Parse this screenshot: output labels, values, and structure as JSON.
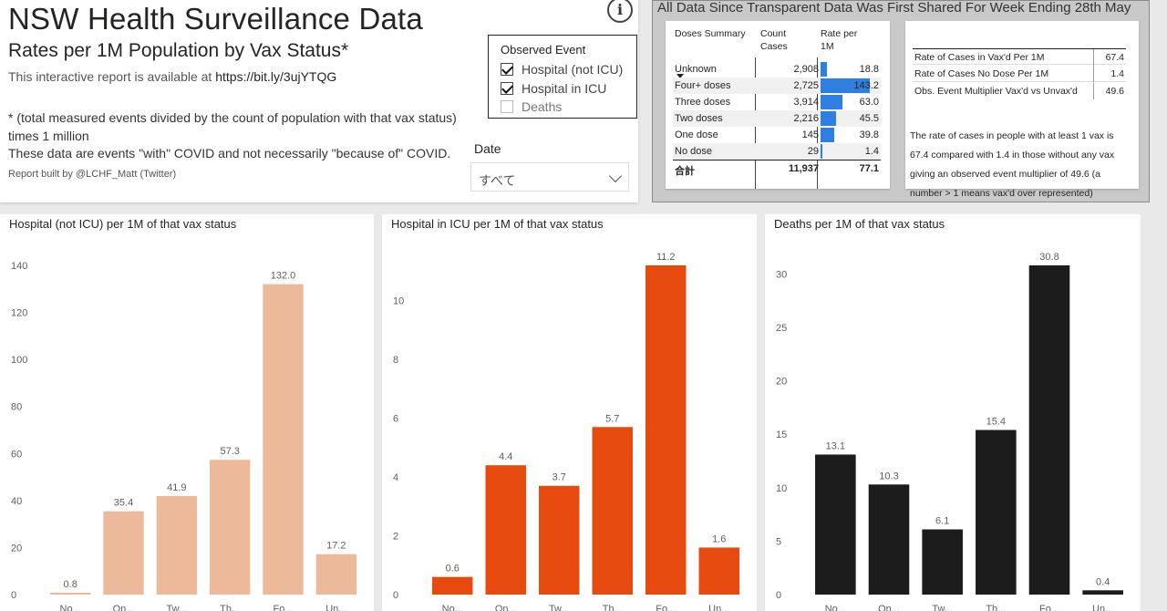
{
  "header": {
    "title": "NSW Health Surveillance Data",
    "subtitle": "Rates per 1M Population by Vax Status*",
    "availability_prefix": "This interactive report is available at",
    "availability_link": "https://bit.ly/3ujYTQG",
    "note_1": "* (total measured events divided by the count of population with that vax status) times 1 million",
    "note_2": "These data are events \"with\" COVID and not necessarily \"because of\" COVID.",
    "credit": "Report built by @LCHF_Matt (Twitter)",
    "info_icon": "i"
  },
  "legend": {
    "heading": "Observed Event",
    "items": [
      {
        "label": "Hospital (not ICU)",
        "checked": true
      },
      {
        "label": "Hospital in ICU",
        "checked": true
      },
      {
        "label": "Deaths",
        "checked": false
      }
    ]
  },
  "date_filter": {
    "label": "Date",
    "value": "すべて"
  },
  "summary": {
    "title": "All Data Since Transparent Data Was First Shared For Week Ending 28th May",
    "table": {
      "headers": [
        "Doses Summary",
        "Count Cases",
        "Rate per 1M"
      ],
      "rows": [
        {
          "label": "Unknown",
          "count": "2,908",
          "rate": "18.8",
          "rate_value": 18.8
        },
        {
          "label": "Four+ doses",
          "count": "2,725",
          "rate": "143.2",
          "rate_value": 143.2
        },
        {
          "label": "Three doses",
          "count": "3,914",
          "rate": "63.0",
          "rate_value": 63.0
        },
        {
          "label": "Two doses",
          "count": "2,216",
          "rate": "45.5",
          "rate_value": 45.5
        },
        {
          "label": "One dose",
          "count": "145",
          "rate": "39.8",
          "rate_value": 39.8
        },
        {
          "label": "No dose",
          "count": "29",
          "rate": "1.4",
          "rate_value": 1.4
        }
      ],
      "total": {
        "label": "合計",
        "count": "11,937",
        "rate": "77.1"
      },
      "bar_color": "#2E7FE0"
    },
    "rates": [
      {
        "label": "Rate of Cases in Vax'd Per 1M",
        "value": "67.4"
      },
      {
        "label": "Rate of Cases No Dose Per 1M",
        "value": "1.4"
      },
      {
        "label": "Obs. Event Multiplier Vax'd vs Unvax'd",
        "value": "49.6"
      }
    ],
    "explanation": "The rate of cases in people with at least 1 vax is 67.4 compared with 1.4 in those without any vax giving an observed event multiplier of 49.6 (a number > 1 means vax'd over represented)"
  },
  "chart_data": [
    {
      "type": "bar",
      "title": "Hospital (not ICU) per 1M of that vax status",
      "categories": [
        "No dose",
        "One dose",
        "Two doses",
        "Three doses",
        "Four+ doses",
        "Unknown"
      ],
      "category_labels_visible": [
        "No...",
        "On...",
        "Tw...",
        "Th...",
        "Fo...",
        "Un..."
      ],
      "values": [
        0.8,
        35.4,
        41.9,
        57.3,
        132.0,
        17.2
      ],
      "value_labels": [
        "0.8",
        "35.4",
        "41.9",
        "57.3",
        "132.0",
        "17.2"
      ],
      "yticks": [
        0,
        20,
        40,
        60,
        80,
        100,
        120,
        140
      ],
      "ylim": [
        0,
        140
      ],
      "color": "#ECB99B",
      "grid": false
    },
    {
      "type": "bar",
      "title": "Hospital in ICU per 1M of that vax status",
      "categories": [
        "No dose",
        "One dose",
        "Two doses",
        "Three doses",
        "Four+ doses",
        "Unknown"
      ],
      "category_labels_visible": [
        "No...",
        "On...",
        "Tw...",
        "Th...",
        "Fo...",
        "Un..."
      ],
      "values": [
        0.6,
        4.4,
        3.7,
        5.7,
        11.2,
        1.6
      ],
      "value_labels": [
        "0.6",
        "4.4",
        "3.7",
        "5.7",
        "11.2",
        "1.6"
      ],
      "yticks": [
        0,
        2,
        4,
        6,
        8,
        10
      ],
      "ylim": [
        0,
        11.2
      ],
      "color": "#E64A0F",
      "grid": false
    },
    {
      "type": "bar",
      "title": "Deaths per 1M of that vax status",
      "categories": [
        "No dose",
        "One dose",
        "Two doses",
        "Three doses",
        "Four+ doses",
        "Unknown"
      ],
      "category_labels_visible": [
        "No...",
        "On...",
        "Tw...",
        "Th...",
        "Fo...",
        "Un..."
      ],
      "values": [
        13.1,
        10.3,
        6.1,
        15.4,
        30.8,
        0.4
      ],
      "value_labels": [
        "13.1",
        "10.3",
        "6.1",
        "15.4",
        "30.8",
        "0.4"
      ],
      "yticks": [
        0,
        5,
        10,
        15,
        20,
        25,
        30
      ],
      "ylim": [
        0,
        30.8
      ],
      "color": "#1C1C1C",
      "grid": false
    }
  ]
}
